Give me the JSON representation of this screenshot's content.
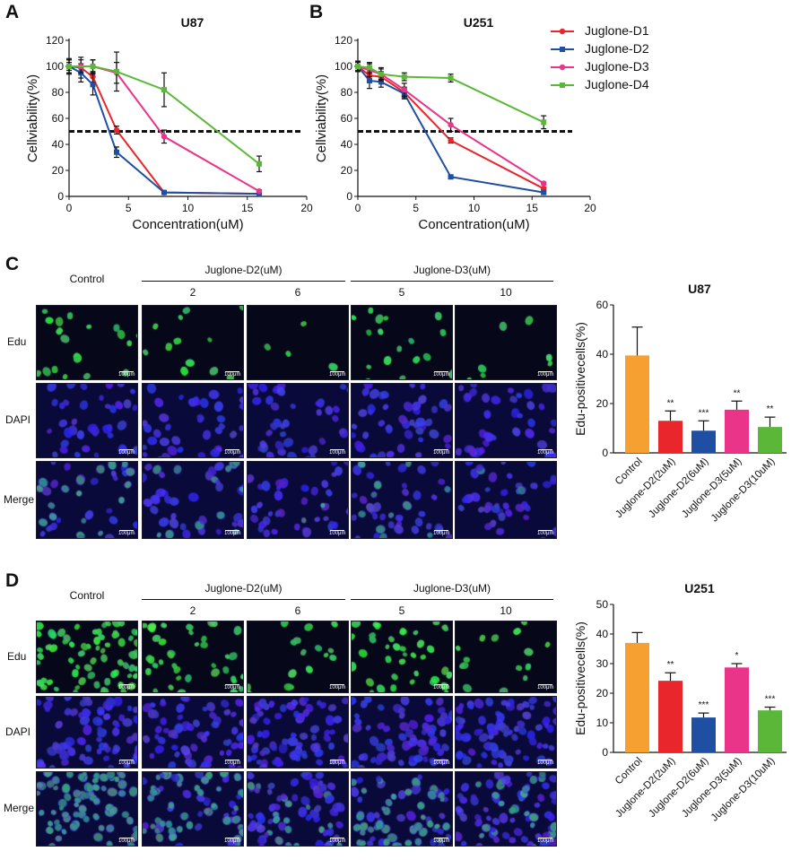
{
  "panels": {
    "A": "A",
    "B": "B",
    "C": "C",
    "D": "D"
  },
  "line_legend": [
    {
      "name": "Juglone-D1",
      "color": "#e8262b"
    },
    {
      "name": "Juglone-D2",
      "color": "#1f4fa3"
    },
    {
      "name": "Juglone-D3",
      "color": "#e9348a"
    },
    {
      "name": "Juglone-D4",
      "color": "#5bb738"
    }
  ],
  "bar_colors": [
    "#f5a030",
    "#e8262b",
    "#1f4fa3",
    "#e9348a",
    "#5bb738"
  ],
  "microscopy": {
    "control_label": "Control",
    "groups": [
      "Juglone-D2(uM)",
      "Juglone-D3(uM)"
    ],
    "concentrations": [
      "2",
      "6",
      "5",
      "10"
    ],
    "rows": [
      "Edu",
      "DAPI",
      "Merge"
    ],
    "scale_bar": "100μm"
  },
  "chart_data": [
    {
      "type": "line",
      "title": "U87",
      "xlabel": "Concentration(uM)",
      "ylabel": "Cellviability(%)",
      "xlim": [
        0,
        20
      ],
      "ylim": [
        0,
        120
      ],
      "xticks": [
        0,
        5,
        10,
        15,
        20
      ],
      "yticks": [
        0,
        20,
        40,
        60,
        80,
        100,
        120
      ],
      "reference_line_y": 50,
      "legend": "none",
      "series": [
        {
          "name": "Juglone-D1",
          "x": [
            0,
            1,
            2,
            4,
            8,
            16
          ],
          "y": [
            100,
            99,
            92,
            51,
            3,
            2
          ],
          "err": [
            3,
            8,
            4,
            3,
            1,
            1
          ]
        },
        {
          "name": "Juglone-D2",
          "x": [
            0,
            1,
            2,
            4,
            8,
            16
          ],
          "y": [
            100,
            95,
            86,
            34,
            3,
            2
          ],
          "err": [
            5,
            7,
            8,
            4,
            1,
            1
          ]
        },
        {
          "name": "Juglone-D3",
          "x": [
            0,
            1,
            2,
            4,
            8,
            16
          ],
          "y": [
            100,
            100,
            100,
            95,
            46,
            4
          ],
          "err": [
            5,
            5,
            5,
            8,
            5,
            1
          ]
        },
        {
          "name": "Juglone-D4",
          "x": [
            0,
            2,
            4,
            8,
            16
          ],
          "y": [
            100,
            100,
            96,
            82,
            25
          ],
          "err": [
            6,
            5,
            15,
            13,
            6
          ]
        }
      ]
    },
    {
      "type": "line",
      "title": "U251",
      "xlabel": "Concentration(uM)",
      "ylabel": "Cellviability(%)",
      "xlim": [
        0,
        20
      ],
      "ylim": [
        0,
        120
      ],
      "xticks": [
        0,
        5,
        10,
        15,
        20
      ],
      "yticks": [
        0,
        20,
        40,
        60,
        80,
        100,
        120
      ],
      "reference_line_y": 50,
      "legend": "right",
      "series": [
        {
          "name": "Juglone-D1",
          "x": [
            0,
            1,
            2,
            4,
            8,
            16
          ],
          "y": [
            100,
            93,
            92,
            80,
            43,
            6
          ],
          "err": [
            4,
            5,
            4,
            4,
            2,
            1
          ]
        },
        {
          "name": "Juglone-D2",
          "x": [
            0,
            1,
            2,
            4,
            8,
            16
          ],
          "y": [
            100,
            89,
            88,
            79,
            15,
            3
          ],
          "err": [
            4,
            6,
            4,
            4,
            1,
            1
          ]
        },
        {
          "name": "Juglone-D3",
          "x": [
            0,
            1,
            2,
            4,
            8,
            16
          ],
          "y": [
            100,
            97,
            94,
            82,
            55,
            10
          ],
          "err": [
            4,
            5,
            5,
            5,
            5,
            1
          ]
        },
        {
          "name": "Juglone-D4",
          "x": [
            0,
            1,
            2,
            4,
            8,
            16
          ],
          "y": [
            100,
            99,
            94,
            92,
            91,
            57
          ],
          "err": [
            3,
            4,
            4,
            3,
            3,
            5
          ]
        }
      ]
    },
    {
      "type": "bar",
      "title": "U87",
      "ylabel": "Edu-positivecells(%)",
      "ylim": [
        0,
        60
      ],
      "yticks": [
        0,
        20,
        40,
        60
      ],
      "categories": [
        "Control",
        "Juglone-D2(2uM)",
        "Juglone-D2(6uM)",
        "Juglone-D3(5uM)",
        "Juglone-D3(10uM)"
      ],
      "values": [
        39.5,
        13,
        9,
        17.5,
        10.5
      ],
      "errors": [
        11.5,
        4,
        4,
        3.5,
        4
      ],
      "significance": [
        "",
        "**",
        "***",
        "**",
        "**"
      ]
    },
    {
      "type": "bar",
      "title": "U251",
      "ylabel": "Edu-positivecells(%)",
      "ylim": [
        0,
        50
      ],
      "yticks": [
        0,
        10,
        20,
        30,
        40,
        50
      ],
      "categories": [
        "Control",
        "Juglone-D2(2uM)",
        "Juglone-D2(6uM)",
        "Juglone-D3(5uM)",
        "Juglone-D3(10uM)"
      ],
      "values": [
        37,
        24.2,
        11.8,
        28.7,
        14.2
      ],
      "errors": [
        3.5,
        2.7,
        1.5,
        1.3,
        1.1
      ],
      "significance": [
        "",
        "**",
        "***",
        "*",
        "***"
      ]
    }
  ]
}
